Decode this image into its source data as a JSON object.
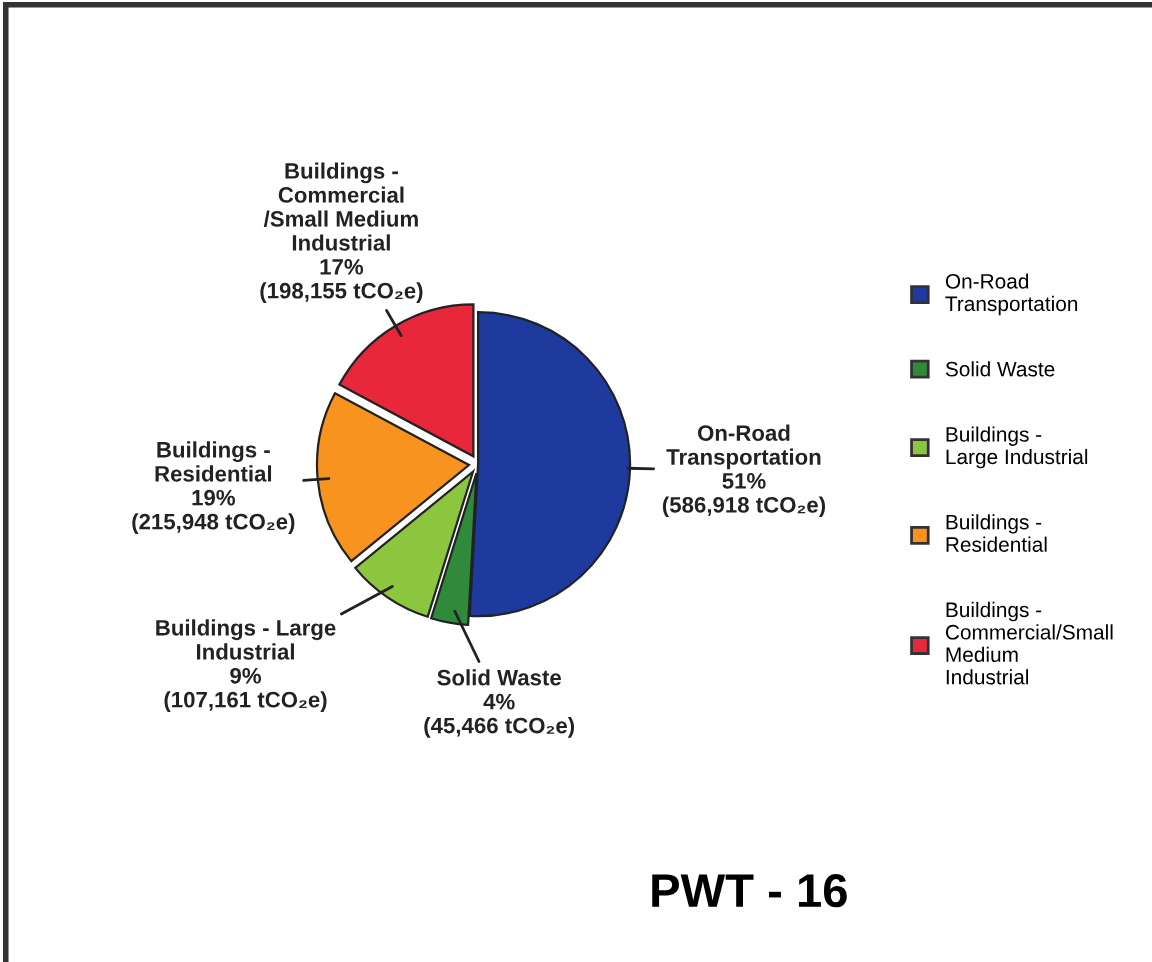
{
  "chart_data": {
    "type": "pie",
    "categories": [
      "On-Road Transportation",
      "Solid Waste",
      "Buildings - Large Industrial",
      "Buildings - Residential",
      "Buildings - Commercial/Small Medium Industrial"
    ],
    "values": [
      586918,
      45466,
      107161,
      215948,
      198155
    ],
    "colors": [
      "#1f3a9e",
      "#2f8a3c",
      "#8cc63f",
      "#f7931e",
      "#e8273b"
    ],
    "value_labels": [
      "On-Road\nTransportation\n51%\n(586,918 tCO₂e)",
      "Solid Waste\n4%\n(45,466 tCO₂e)",
      "Buildings - Large\nIndustrial\n9%\n(107,161 tCO₂e)",
      "Buildings -\nResidential\n19%\n(215,948 tCO₂e)",
      "Buildings -\nCommercial\n/Small Medium\nIndustrial\n17%\n(198,155 tCO₂e)"
    ],
    "annotations": [
      "PWT - 16"
    ],
    "legend": "right"
  }
}
